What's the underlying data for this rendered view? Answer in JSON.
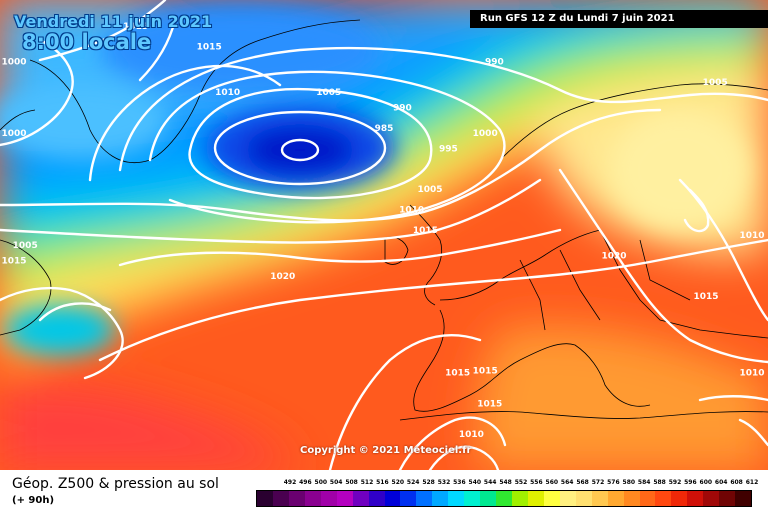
{
  "header": {
    "date_line_1": "Vendredi 11 juin 2021",
    "date_line_2": "8:00 locale",
    "run_info": "Run GFS 12 Z du Lundi 7 juin 2021"
  },
  "map": {
    "copyright": "Copyright © 2021 Meteociel.fr",
    "isobar_labels": [
      {
        "text": "1015",
        "lon": -36.0,
        "lat": 70.5
      },
      {
        "text": "1015",
        "lon": -28.0,
        "lat": 68.5
      },
      {
        "text": "1000",
        "lon": -50.0,
        "lat": 67.0
      },
      {
        "text": "1010",
        "lon": -26.0,
        "lat": 64.0
      },
      {
        "text": "1005",
        "lon": -15.0,
        "lat": 64.0
      },
      {
        "text": "990",
        "lon": 3.0,
        "lat": 67.0
      },
      {
        "text": "990",
        "lon": -7.0,
        "lat": 62.5
      },
      {
        "text": "985",
        "lon": -9.0,
        "lat": 60.5
      },
      {
        "text": "995",
        "lon": -2.0,
        "lat": 58.5
      },
      {
        "text": "1000",
        "lon": 2.0,
        "lat": 60.0
      },
      {
        "text": "1000",
        "lon": -58.0,
        "lat": 60.0
      },
      {
        "text": "1005",
        "lon": 27.0,
        "lat": 65.0
      },
      {
        "text": "1005",
        "lon": -4.0,
        "lat": 54.5
      },
      {
        "text": "1010",
        "lon": -6.0,
        "lat": 52.5
      },
      {
        "text": "1015",
        "lon": -4.5,
        "lat": 50.5
      },
      {
        "text": "1020",
        "lon": 16.0,
        "lat": 48.0
      },
      {
        "text": "1010",
        "lon": 40.0,
        "lat": 50.0
      },
      {
        "text": "1015",
        "lon": 26.0,
        "lat": 44.0
      },
      {
        "text": "1015",
        "lon": -62.0,
        "lat": 47.5
      },
      {
        "text": "1005",
        "lon": -48.0,
        "lat": 49.0
      },
      {
        "text": "1020",
        "lon": -20.0,
        "lat": 46.0
      },
      {
        "text": "1015",
        "lon": -1.0,
        "lat": 36.5
      },
      {
        "text": "1015",
        "lon": 2.0,
        "lat": 36.7
      },
      {
        "text": "1015",
        "lon": 2.5,
        "lat": 33.5
      },
      {
        "text": "1010",
        "lon": 0.5,
        "lat": 30.5
      },
      {
        "text": "1010",
        "lon": 39.0,
        "lat": 36.5
      }
    ]
  },
  "footer": {
    "title": "Géop. Z500 & pression au sol",
    "subtitle": "(+ 90h)",
    "scale_values": [
      "492",
      "496",
      "500",
      "504",
      "508",
      "512",
      "516",
      "520",
      "524",
      "528",
      "532",
      "536",
      "540",
      "544",
      "548",
      "552",
      "556",
      "560",
      "564",
      "568",
      "572",
      "576",
      "580",
      "584",
      "588",
      "592",
      "596",
      "600",
      "604",
      "608",
      "612"
    ],
    "scale_colors": [
      "#2a0030",
      "#4a0050",
      "#6a0070",
      "#8a0090",
      "#a000a8",
      "#b400c0",
      "#7000c0",
      "#3000c8",
      "#0000d8",
      "#0030f0",
      "#0070ff",
      "#00a8ff",
      "#00d8ff",
      "#00f0d0",
      "#00e890",
      "#30e830",
      "#a0f000",
      "#e0f000",
      "#ffff40",
      "#fff080",
      "#ffe070",
      "#ffc850",
      "#ffa830",
      "#ff8820",
      "#ff6818",
      "#ff4810",
      "#f02808",
      "#d01008",
      "#a00808",
      "#700404",
      "#400000"
    ]
  }
}
